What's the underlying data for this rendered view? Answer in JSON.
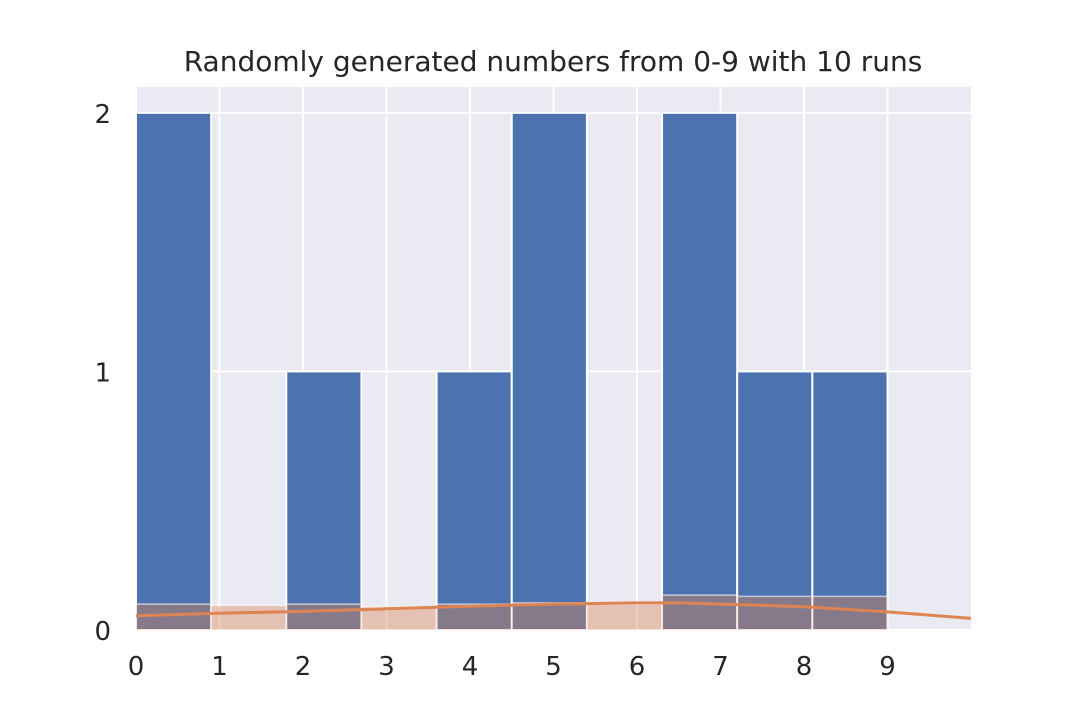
{
  "chart_data": {
    "type": "bar",
    "title": "Randomly generated numbers from 0-9 with 10 runs",
    "xlabel": "",
    "ylabel": "",
    "xlim": [
      0,
      10
    ],
    "ylim": [
      0,
      2.1
    ],
    "grid": true,
    "x_ticks": [
      0,
      1,
      2,
      3,
      4,
      5,
      6,
      7,
      8,
      9
    ],
    "y_ticks": [
      0,
      1,
      2
    ],
    "histogram": {
      "name": "",
      "color": "#4c72b0",
      "bins": [
        {
          "x0": 0.0,
          "x1": 0.9,
          "count": 2
        },
        {
          "x0": 1.8,
          "x1": 2.7,
          "count": 1
        },
        {
          "x0": 3.6,
          "x1": 4.5,
          "count": 1
        },
        {
          "x0": 4.5,
          "x1": 5.4,
          "count": 2
        },
        {
          "x0": 6.3,
          "x1": 7.2,
          "count": 2
        },
        {
          "x0": 7.2,
          "x1": 8.1,
          "count": 1
        },
        {
          "x0": 8.1,
          "x1": 9.0,
          "count": 1
        }
      ]
    },
    "density_histogram": {
      "name": "",
      "color": "#dd8452",
      "opacity": 0.4,
      "bins": [
        {
          "x0": 0.0,
          "x1": 0.9,
          "value": 0.1
        },
        {
          "x0": 0.9,
          "x1": 1.8,
          "value": 0.095
        },
        {
          "x0": 1.8,
          "x1": 2.7,
          "value": 0.1
        },
        {
          "x0": 2.7,
          "x1": 3.6,
          "value": 0.09
        },
        {
          "x0": 3.6,
          "x1": 4.5,
          "value": 0.1
        },
        {
          "x0": 4.5,
          "x1": 5.4,
          "value": 0.105
        },
        {
          "x0": 5.4,
          "x1": 6.3,
          "value": 0.1
        },
        {
          "x0": 6.3,
          "x1": 7.2,
          "value": 0.135
        },
        {
          "x0": 7.2,
          "x1": 8.1,
          "value": 0.13
        },
        {
          "x0": 8.1,
          "x1": 9.0,
          "value": 0.13
        }
      ]
    },
    "kde": {
      "name": "",
      "color": "#dd8452",
      "x": [
        0,
        1,
        2,
        3,
        4,
        5,
        6,
        6.5,
        7,
        8,
        9,
        10
      ],
      "y": [
        0.055,
        0.065,
        0.072,
        0.082,
        0.092,
        0.1,
        0.105,
        0.105,
        0.1,
        0.09,
        0.07,
        0.045
      ]
    }
  }
}
